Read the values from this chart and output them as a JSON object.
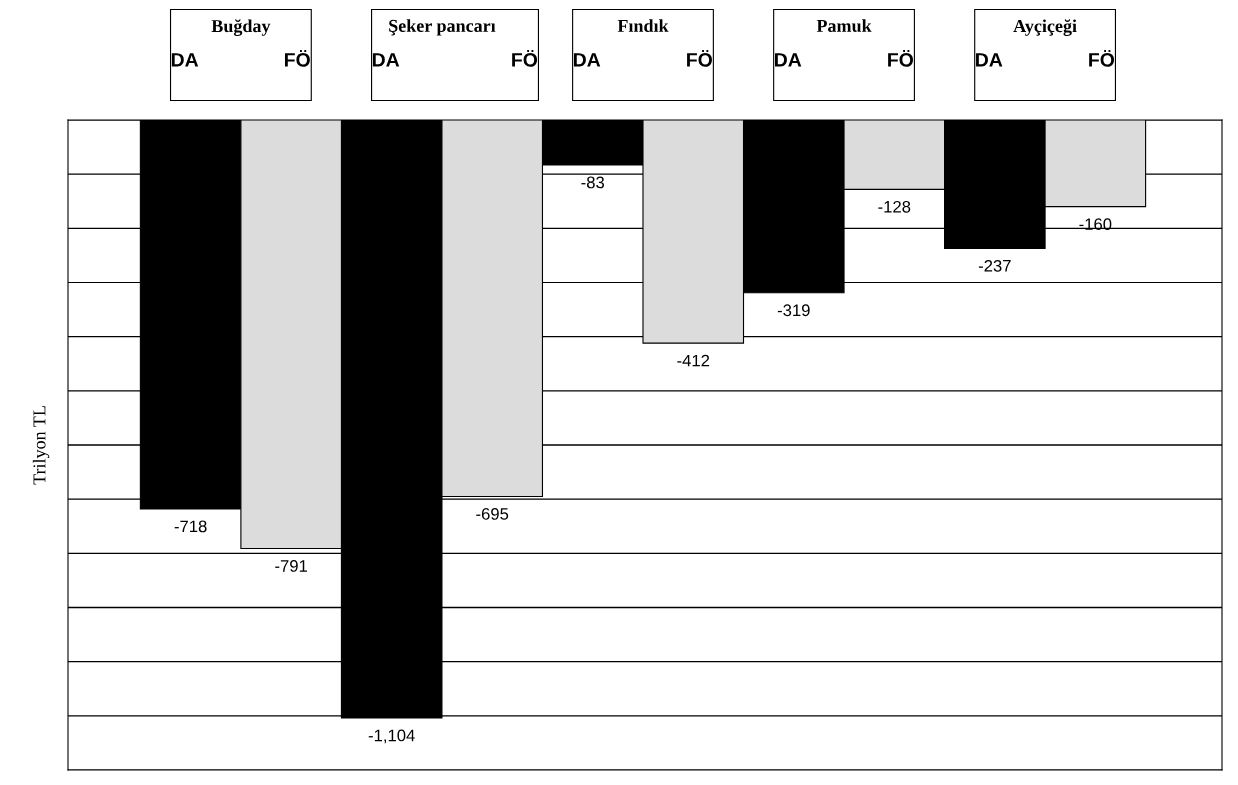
{
  "chart_data": {
    "type": "bar",
    "ylabel": "Trilyon TL",
    "categories": [
      "Buğday",
      "Şeker pancarı",
      "Fındık",
      "Pamuk",
      "Ayçiçeği"
    ],
    "series": [
      {
        "name": "DA",
        "color": "#000000",
        "values": [
          -718,
          -1104,
          -83,
          -319,
          -237
        ],
        "value_labels": [
          "-718",
          "-1,104",
          "-83",
          "-319",
          "-237"
        ]
      },
      {
        "name": "FÖ",
        "color": "#dcdcdc",
        "values": [
          -791,
          -695,
          -412,
          -128,
          -160
        ],
        "value_labels": [
          "-791",
          "-695",
          "-412",
          "-128",
          "-160"
        ]
      }
    ],
    "ylim": [
      -1200,
      0
    ],
    "yticks": [
      {
        "value": -1200,
        "label": null
      },
      {
        "value": -1100,
        "label": null
      },
      {
        "value": -1000,
        "label": null
      },
      {
        "value": -900,
        "label": null
      },
      {
        "value": -800,
        "label": null
      },
      {
        "value": -700,
        "label": null
      },
      {
        "value": -600,
        "label": null
      },
      {
        "value": -500,
        "label": null
      },
      {
        "value": -400,
        "label": null
      },
      {
        "value": -300,
        "label": null
      },
      {
        "value": -200,
        "label": null
      },
      {
        "value": -100,
        "label": null
      },
      {
        "value": 0,
        "label": null
      }
    ],
    "grid": "y"
  }
}
